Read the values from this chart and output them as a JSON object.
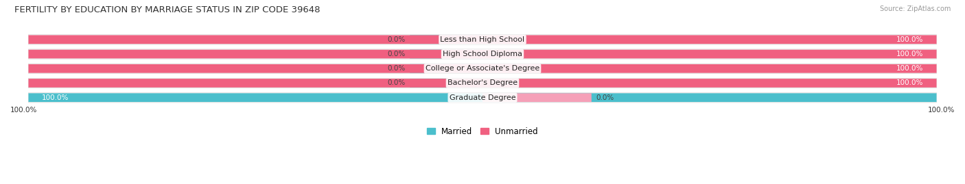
{
  "title": "FERTILITY BY EDUCATION BY MARRIAGE STATUS IN ZIP CODE 39648",
  "source": "Source: ZipAtlas.com",
  "categories": [
    "Less than High School",
    "High School Diploma",
    "College or Associate's Degree",
    "Bachelor's Degree",
    "Graduate Degree"
  ],
  "married": [
    0.0,
    0.0,
    0.0,
    0.0,
    100.0
  ],
  "unmarried": [
    100.0,
    100.0,
    100.0,
    100.0,
    0.0
  ],
  "married_color": "#4bbfcc",
  "unmarried_color": "#f06080",
  "unmarried_light_color": "#f5a0b8",
  "bar_bg_color": "#eeeeee",
  "background_color": "#ffffff",
  "title_fontsize": 9.5,
  "label_fontsize": 8,
  "value_fontsize": 7.5,
  "source_fontsize": 7,
  "legend_label_married": "Married",
  "legend_label_unmarried": "Unmarried",
  "bottom_left_label": "100.0%",
  "bottom_right_label": "100.0%"
}
